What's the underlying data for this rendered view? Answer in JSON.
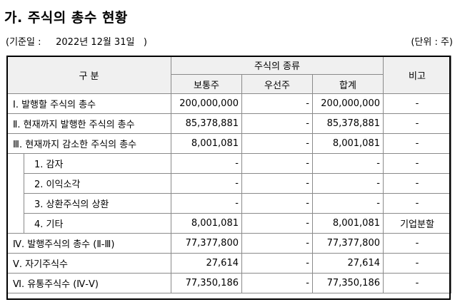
{
  "title": "가. 주식의 총수 현황",
  "reference_date": "(기준일 :     2022년 12월 31일   )",
  "unit": "(단위 : 주)",
  "headers": {
    "category": "구  분",
    "share_types": "주식의 종류",
    "common": "보통주",
    "preferred": "우선주",
    "total": "합계",
    "remarks": "비고"
  },
  "rows": [
    {
      "label": "Ⅰ. 발행할 주식의 총수",
      "common": "200,000,000",
      "preferred": "-",
      "total": "200,000,000",
      "remarks": "-"
    },
    {
      "label": "Ⅱ. 현재까지 발행한 주식의 총수",
      "common": "85,378,881",
      "preferred": "-",
      "total": "85,378,881",
      "remarks": "-"
    },
    {
      "label": "Ⅲ. 현재까지 감소한 주식의 총수",
      "common": "8,001,081",
      "preferred": "-",
      "total": "8,001,081",
      "remarks": "-"
    }
  ],
  "sub_rows": [
    {
      "label": "1. 감자",
      "common": "-",
      "preferred": "-",
      "total": "-",
      "remarks": "-"
    },
    {
      "label": "2. 이익소각",
      "common": "-",
      "preferred": "-",
      "total": "-",
      "remarks": "-"
    },
    {
      "label": "3. 상환주식의 상환",
      "common": "-",
      "preferred": "-",
      "total": "-",
      "remarks": "-"
    },
    {
      "label": "4. 기타",
      "common": "8,001,081",
      "preferred": "-",
      "total": "8,001,081",
      "remarks": "기업분할"
    }
  ],
  "bottom_rows": [
    {
      "label": "Ⅳ. 발행주식의 총수 (Ⅱ-Ⅲ)",
      "common": "77,377,800",
      "preferred": "-",
      "total": "77,377,800",
      "remarks": "-"
    },
    {
      "label": "Ⅴ. 자기주식수",
      "common": "27,614",
      "preferred": "-",
      "total": "27,614",
      "remarks": "-"
    },
    {
      "label": "Ⅵ. 유통주식수 (Ⅳ-Ⅴ)",
      "common": "77,350,186",
      "preferred": "-",
      "total": "77,350,186",
      "remarks": "-"
    }
  ]
}
